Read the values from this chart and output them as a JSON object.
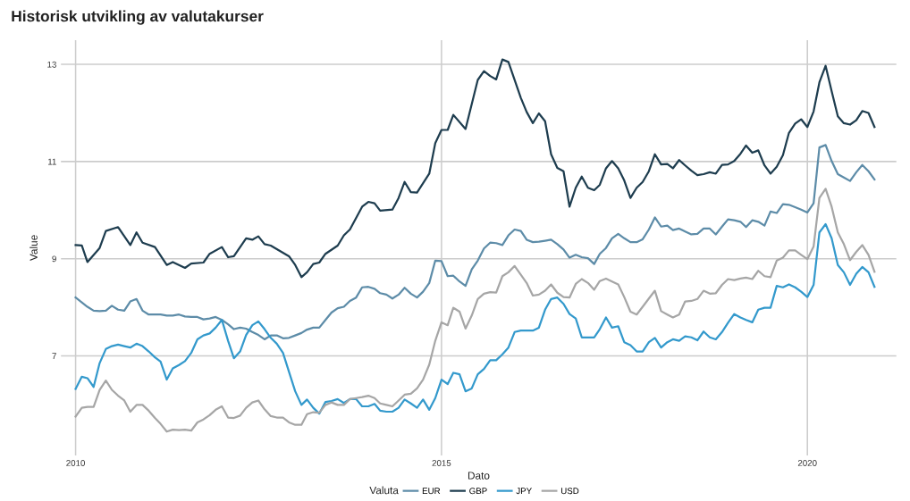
{
  "chart_data": {
    "type": "line",
    "title": "Historisk utvikling av valutakurser",
    "xlabel": "Dato",
    "ylabel": "Value",
    "legend_title": "Valuta",
    "legend": "bottom",
    "grid": true,
    "line_style": "solid",
    "xlim": [
      "2009-10-20",
      "2021-03-20"
    ],
    "xticks": [
      "2010",
      "2015",
      "2020"
    ],
    "ylim": [
      4.95,
      13.5
    ],
    "yticks": [
      7,
      9,
      11,
      13
    ],
    "x": [
      "2010-01",
      "2010-02",
      "2010-03",
      "2010-04",
      "2010-05",
      "2010-06",
      "2010-07",
      "2010-08",
      "2010-09",
      "2010-10",
      "2010-11",
      "2010-12",
      "2011-01",
      "2011-02",
      "2011-03",
      "2011-04",
      "2011-05",
      "2011-06",
      "2011-07",
      "2011-08",
      "2011-09",
      "2011-10",
      "2011-11",
      "2011-12",
      "2012-01",
      "2012-02",
      "2012-03",
      "2012-04",
      "2012-05",
      "2012-06",
      "2012-07",
      "2012-08",
      "2012-09",
      "2012-10",
      "2012-11",
      "2012-12",
      "2013-01",
      "2013-02",
      "2013-03",
      "2013-04",
      "2013-05",
      "2013-06",
      "2013-07",
      "2013-08",
      "2013-09",
      "2013-10",
      "2013-11",
      "2013-12",
      "2014-01",
      "2014-02",
      "2014-03",
      "2014-04",
      "2014-05",
      "2014-06",
      "2014-07",
      "2014-08",
      "2014-09",
      "2014-10",
      "2014-11",
      "2014-12",
      "2015-01",
      "2015-02",
      "2015-03",
      "2015-04",
      "2015-05",
      "2015-06",
      "2015-07",
      "2015-08",
      "2015-09",
      "2015-10",
      "2015-11",
      "2015-12",
      "2016-01",
      "2016-02",
      "2016-03",
      "2016-04",
      "2016-05",
      "2016-06",
      "2016-07",
      "2016-08",
      "2016-09",
      "2016-10",
      "2016-11",
      "2016-12",
      "2017-01",
      "2017-02",
      "2017-03",
      "2017-04",
      "2017-05",
      "2017-06",
      "2017-07",
      "2017-08",
      "2017-09",
      "2017-10",
      "2017-11",
      "2017-12",
      "2018-01",
      "2018-02",
      "2018-03",
      "2018-04",
      "2018-05",
      "2018-06",
      "2018-07",
      "2018-08",
      "2018-09",
      "2018-10",
      "2018-11",
      "2018-12",
      "2019-01",
      "2019-02",
      "2019-03",
      "2019-04",
      "2019-05",
      "2019-06",
      "2019-07",
      "2019-08",
      "2019-09",
      "2019-10",
      "2019-11",
      "2019-12",
      "2020-01",
      "2020-02",
      "2020-03",
      "2020-04",
      "2020-05",
      "2020-06",
      "2020-07",
      "2020-08",
      "2020-09",
      "2020-10",
      "2020-11",
      "2020-12"
    ],
    "series": [
      {
        "name": "EUR",
        "color": "#5d8ca8",
        "values": [
          8.2,
          8.1,
          8.01,
          7.93,
          7.92,
          7.93,
          8.03,
          7.95,
          7.93,
          8.12,
          8.17,
          7.93,
          7.85,
          7.85,
          7.85,
          7.83,
          7.83,
          7.85,
          7.81,
          7.8,
          7.8,
          7.75,
          7.77,
          7.8,
          7.74,
          7.65,
          7.55,
          7.58,
          7.56,
          7.49,
          7.43,
          7.34,
          7.42,
          7.42,
          7.36,
          7.37,
          7.42,
          7.47,
          7.54,
          7.58,
          7.58,
          7.74,
          7.89,
          7.98,
          8.01,
          8.13,
          8.2,
          8.41,
          8.42,
          8.38,
          8.29,
          8.26,
          8.18,
          8.26,
          8.4,
          8.28,
          8.2,
          8.32,
          8.5,
          8.96,
          8.95,
          8.64,
          8.65,
          8.53,
          8.44,
          8.78,
          8.96,
          9.21,
          9.33,
          9.32,
          9.28,
          9.48,
          9.6,
          9.57,
          9.39,
          9.34,
          9.35,
          9.37,
          9.39,
          9.3,
          9.19,
          9.02,
          9.08,
          9.03,
          9.01,
          8.89,
          9.1,
          9.22,
          9.42,
          9.51,
          9.42,
          9.34,
          9.34,
          9.4,
          9.6,
          9.85,
          9.66,
          9.68,
          9.59,
          9.62,
          9.56,
          9.5,
          9.51,
          9.62,
          9.62,
          9.5,
          9.66,
          9.81,
          9.79,
          9.76,
          9.65,
          9.79,
          9.76,
          9.68,
          9.97,
          9.94,
          10.12,
          10.11,
          10.06,
          10.01,
          9.95,
          10.14,
          11.29,
          11.34,
          11.01,
          10.74,
          10.67,
          10.6,
          10.78,
          10.93,
          10.8,
          10.63
        ]
      },
      {
        "name": "GBP",
        "color": "#1e3d4f",
        "x": [
          "2010-01",
          "2010-02",
          "2010-03",
          "2010-05",
          "2010-06",
          "2010-08",
          "2010-10",
          "2010-11",
          "2010-12",
          "2011-02",
          "2011-04",
          "2011-05",
          "2011-07",
          "2011-08",
          "2011-10",
          "2011-11",
          "2012-01",
          "2012-02",
          "2012-03",
          "2012-05",
          "2012-06",
          "2012-07",
          "2012-08",
          "2012-09",
          "2012-12",
          "2013-01",
          "2013-02",
          "2013-03",
          "2013-04",
          "2013-05",
          "2013-06",
          "2013-08",
          "2013-09",
          "2013-10",
          "2013-12",
          "2014-01",
          "2014-02",
          "2014-03",
          "2014-05",
          "2014-06",
          "2014-07",
          "2014-08",
          "2014-09",
          "2014-11",
          "2014-12",
          "2015-01",
          "2015-02",
          "2015-03",
          "2015-05",
          "2015-07",
          "2015-08",
          "2015-09",
          "2015-10",
          "2015-11",
          "2015-12",
          "2016-02",
          "2016-03",
          "2016-04",
          "2016-05",
          "2016-06",
          "2016-07",
          "2016-08",
          "2016-09",
          "2016-10",
          "2016-11",
          "2016-12",
          "2017-01",
          "2017-02",
          "2017-03",
          "2017-04",
          "2017-05",
          "2017-06",
          "2017-07",
          "2017-08",
          "2017-09",
          "2017-10",
          "2017-11",
          "2017-12",
          "2018-01",
          "2018-02",
          "2018-03",
          "2018-04",
          "2018-05",
          "2018-06",
          "2018-07",
          "2018-08",
          "2018-09",
          "2018-10",
          "2018-11",
          "2018-12",
          "2019-01",
          "2019-02",
          "2019-03",
          "2019-04",
          "2019-05",
          "2019-06",
          "2019-07",
          "2019-08",
          "2019-09",
          "2019-10",
          "2019-11",
          "2019-12",
          "2020-01",
          "2020-02",
          "2020-03",
          "2020-04",
          "2020-05",
          "2020-06",
          "2020-07",
          "2020-08",
          "2020-09",
          "2020-10",
          "2020-11",
          "2020-12"
        ],
        "values": [
          9.28,
          9.27,
          8.93,
          9.22,
          9.57,
          9.65,
          9.28,
          9.54,
          9.33,
          9.24,
          8.87,
          8.93,
          8.81,
          8.9,
          8.92,
          9.1,
          9.24,
          9.03,
          9.05,
          9.42,
          9.39,
          9.46,
          9.3,
          9.27,
          9.05,
          8.87,
          8.62,
          8.72,
          8.89,
          8.92,
          9.1,
          9.27,
          9.48,
          9.6,
          10.07,
          10.17,
          10.14,
          9.99,
          10.01,
          10.25,
          10.58,
          10.37,
          10.36,
          10.75,
          11.38,
          11.65,
          11.65,
          11.96,
          11.67,
          12.68,
          12.86,
          12.76,
          12.69,
          13.1,
          13.05,
          12.31,
          12.02,
          11.79,
          11.99,
          11.83,
          11.15,
          10.87,
          10.8,
          10.07,
          10.46,
          10.69,
          10.46,
          10.41,
          10.52,
          10.86,
          11.01,
          10.86,
          10.61,
          10.25,
          10.46,
          10.58,
          10.8,
          11.15,
          10.94,
          10.95,
          10.86,
          11.03,
          10.92,
          10.81,
          10.72,
          10.74,
          10.78,
          10.75,
          10.93,
          10.94,
          11.01,
          11.16,
          11.33,
          11.18,
          11.23,
          10.92,
          10.75,
          10.89,
          11.13,
          11.59,
          11.78,
          11.87,
          11.71,
          12.03,
          12.63,
          12.97,
          12.45,
          11.93,
          11.79,
          11.76,
          11.85,
          12.04,
          12.0,
          11.71
        ]
      },
      {
        "name": "JPY",
        "color": "#3399cc",
        "values": [
          6.32,
          6.57,
          6.54,
          6.36,
          6.85,
          7.14,
          7.2,
          7.23,
          7.2,
          7.17,
          7.25,
          7.2,
          7.09,
          6.97,
          6.88,
          6.51,
          6.74,
          6.81,
          6.89,
          7.06,
          7.34,
          7.42,
          7.46,
          7.58,
          7.74,
          7.31,
          6.95,
          7.09,
          7.43,
          7.63,
          7.71,
          7.55,
          7.37,
          7.25,
          7.06,
          6.67,
          6.27,
          5.99,
          6.1,
          5.93,
          5.81,
          6.05,
          6.07,
          6.11,
          6.03,
          6.11,
          6.11,
          5.96,
          5.96,
          6.01,
          5.87,
          5.85,
          5.85,
          5.93,
          6.1,
          6.02,
          5.93,
          6.1,
          5.89,
          6.13,
          6.51,
          6.42,
          6.65,
          6.62,
          6.27,
          6.33,
          6.62,
          6.73,
          6.91,
          6.91,
          7.03,
          7.17,
          7.49,
          7.52,
          7.52,
          7.52,
          7.58,
          7.95,
          8.17,
          8.2,
          8.07,
          7.86,
          7.77,
          7.38,
          7.38,
          7.38,
          7.55,
          7.79,
          7.58,
          7.61,
          7.28,
          7.22,
          7.09,
          7.09,
          7.28,
          7.37,
          7.17,
          7.28,
          7.34,
          7.31,
          7.4,
          7.38,
          7.32,
          7.5,
          7.38,
          7.34,
          7.49,
          7.68,
          7.86,
          7.79,
          7.74,
          7.69,
          7.95,
          7.99,
          7.99,
          8.44,
          8.41,
          8.47,
          8.41,
          8.32,
          8.21,
          8.46,
          9.54,
          9.71,
          9.42,
          8.87,
          8.72,
          8.46,
          8.69,
          8.83,
          8.72,
          8.42
        ]
      },
      {
        "name": "USD",
        "color": "#a6a6a6",
        "values": [
          5.75,
          5.93,
          5.95,
          5.95,
          6.3,
          6.49,
          6.3,
          6.18,
          6.08,
          5.85,
          5.99,
          5.99,
          5.87,
          5.72,
          5.6,
          5.44,
          5.48,
          5.47,
          5.48,
          5.46,
          5.63,
          5.69,
          5.78,
          5.89,
          5.96,
          5.73,
          5.72,
          5.77,
          5.93,
          6.04,
          6.08,
          5.9,
          5.76,
          5.73,
          5.73,
          5.63,
          5.58,
          5.58,
          5.8,
          5.84,
          5.83,
          5.99,
          6.04,
          5.99,
          5.99,
          6.11,
          6.13,
          6.15,
          6.18,
          6.13,
          6.02,
          5.99,
          5.96,
          6.08,
          6.2,
          6.22,
          6.33,
          6.51,
          6.82,
          7.31,
          7.69,
          7.63,
          7.99,
          7.91,
          7.56,
          7.83,
          8.17,
          8.28,
          8.31,
          8.3,
          8.64,
          8.72,
          8.85,
          8.67,
          8.5,
          8.24,
          8.26,
          8.34,
          8.47,
          8.3,
          8.21,
          8.2,
          8.48,
          8.58,
          8.5,
          8.36,
          8.54,
          8.59,
          8.53,
          8.47,
          8.21,
          7.91,
          7.85,
          8.01,
          8.18,
          8.34,
          7.92,
          7.85,
          7.79,
          7.85,
          8.12,
          8.13,
          8.17,
          8.34,
          8.28,
          8.29,
          8.46,
          8.58,
          8.56,
          8.59,
          8.61,
          8.58,
          8.75,
          8.64,
          8.62,
          8.96,
          9.02,
          9.17,
          9.17,
          9.08,
          8.99,
          9.25,
          10.25,
          10.44,
          10.07,
          9.54,
          9.3,
          8.97,
          9.14,
          9.28,
          9.08,
          8.73
        ]
      }
    ]
  }
}
